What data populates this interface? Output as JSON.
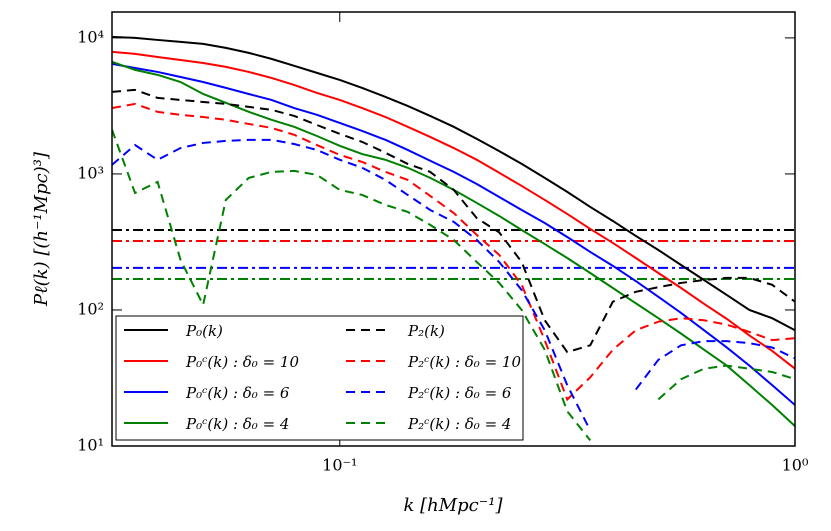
{
  "chart_data": {
    "type": "line",
    "xlabel": "k [hMpc⁻¹]",
    "ylabel": "Pℓ(k) [(h⁻¹Mpc)³]",
    "xscale": "log",
    "yscale": "log",
    "xlim": [
      0.0316,
      1
    ],
    "ylim": [
      10,
      15500
    ],
    "xticks": [
      {
        "value": 0.1,
        "label": "10⁻¹"
      },
      {
        "value": 1,
        "label": "10⁰"
      }
    ],
    "yticks": [
      {
        "value": 10,
        "label": "10¹"
      },
      {
        "value": 100,
        "label": "10²"
      },
      {
        "value": 1000,
        "label": "10³"
      },
      {
        "value": 10000,
        "label": "10⁴"
      }
    ],
    "legend": "lower left",
    "x": [
      0.0316,
      0.0355,
      0.0398,
      0.0447,
      0.0501,
      0.0562,
      0.0631,
      0.0708,
      0.0794,
      0.0891,
      0.1,
      0.112,
      0.126,
      0.141,
      0.158,
      0.178,
      0.2,
      0.224,
      0.251,
      0.282,
      0.316,
      0.355,
      0.398,
      0.447,
      0.501,
      0.562,
      0.631,
      0.708,
      0.794,
      0.891,
      1.0
    ],
    "series": [
      {
        "name": "P₀(k)",
        "color": "#000000",
        "dash": "solid",
        "values": [
          10170,
          10000,
          9660,
          9350,
          9040,
          8440,
          7760,
          7010,
          6230,
          5530,
          4910,
          4290,
          3680,
          3160,
          2670,
          2220,
          1810,
          1470,
          1185,
          935,
          738,
          572,
          451,
          350,
          276,
          214,
          166,
          129,
          100,
          87,
          71
        ]
      },
      {
        "name": "P₀ᶜ(k) : δ₀ = 10",
        "color": "#ff0000",
        "dash": "solid",
        "values": [
          7890,
          7630,
          7240,
          6880,
          6540,
          6120,
          5620,
          5080,
          4510,
          3940,
          3500,
          3050,
          2620,
          2220,
          1870,
          1550,
          1270,
          1020,
          816,
          644,
          508,
          394,
          311,
          241,
          187,
          145,
          111,
          86,
          65,
          50,
          37
        ]
      },
      {
        "name": "P₀ᶜ(k) : δ₀ = 6",
        "color": "#0000ff",
        "dash": "solid",
        "values": [
          6440,
          6010,
          5620,
          5160,
          4740,
          4290,
          3870,
          3500,
          3050,
          2720,
          2370,
          2070,
          1780,
          1500,
          1250,
          1035,
          843,
          677,
          543,
          436,
          344,
          267,
          211,
          163,
          125,
          95,
          71,
          53,
          39,
          28,
          20
        ]
      },
      {
        "name": "P₀ᶜ(k) : δ₀ = 4",
        "color": "#008000",
        "dash": "solid",
        "values": [
          6670,
          5820,
          5350,
          4740,
          3870,
          3330,
          2860,
          2500,
          2220,
          1900,
          1610,
          1400,
          1270,
          1110,
          935,
          763,
          612,
          491,
          387,
          305,
          241,
          187,
          145,
          112,
          87,
          67,
          51,
          39,
          28,
          20,
          14
        ]
      },
      {
        "name": "P₂(k)",
        "color": "#000000",
        "dash": "dashed",
        "values": [
          4010,
          4150,
          3620,
          3500,
          3380,
          3270,
          3110,
          2960,
          2670,
          2290,
          1970,
          1720,
          1430,
          1185,
          1035,
          763,
          473,
          372,
          225,
          84,
          49,
          55,
          115,
          136,
          147,
          158,
          166,
          172,
          172,
          153,
          115
        ]
      },
      {
        "name": "P₂ᶜ(k) : δ₀ = 10",
        "color": "#ff0000",
        "dash": "dashed",
        "values": [
          3050,
          3270,
          2860,
          2720,
          2620,
          2500,
          2330,
          2180,
          1940,
          1630,
          1380,
          1225,
          1035,
          904,
          689,
          516,
          356,
          254,
          153,
          60,
          22,
          32,
          51,
          71,
          82,
          87,
          84,
          78,
          69,
          60,
          62
        ]
      },
      {
        "name": "P₂ᶜ(k) : δ₀ = 6",
        "color": "#0000ff",
        "dash": "dashed",
        "values": [
          1165,
          1630,
          1270,
          1550,
          1690,
          1750,
          1780,
          1780,
          1660,
          1500,
          1270,
          1110,
          904,
          701,
          543,
          444,
          327,
          225,
          140,
          71,
          28,
          13,
          null,
          26,
          43,
          55,
          59,
          59,
          57,
          53,
          44
        ]
      },
      {
        "name": "P₂ᶜ(k) : δ₀ = 4",
        "color": "#008000",
        "dash": "dashed",
        "values": [
          2110,
          725,
          873,
          233,
          109,
          644,
          935,
          1035,
          1052,
          984,
          763,
          701,
          592,
          526,
          422,
          327,
          225,
          158,
          100,
          51,
          18,
          11,
          null,
          null,
          22,
          31,
          37,
          39,
          37,
          35,
          31
        ]
      }
    ],
    "hlines": [
      {
        "value": 387,
        "color": "#000000"
      },
      {
        "value": 321,
        "color": "#ff0000"
      },
      {
        "value": 204,
        "color": "#0000ff"
      },
      {
        "value": 169,
        "color": "#008000"
      }
    ]
  }
}
